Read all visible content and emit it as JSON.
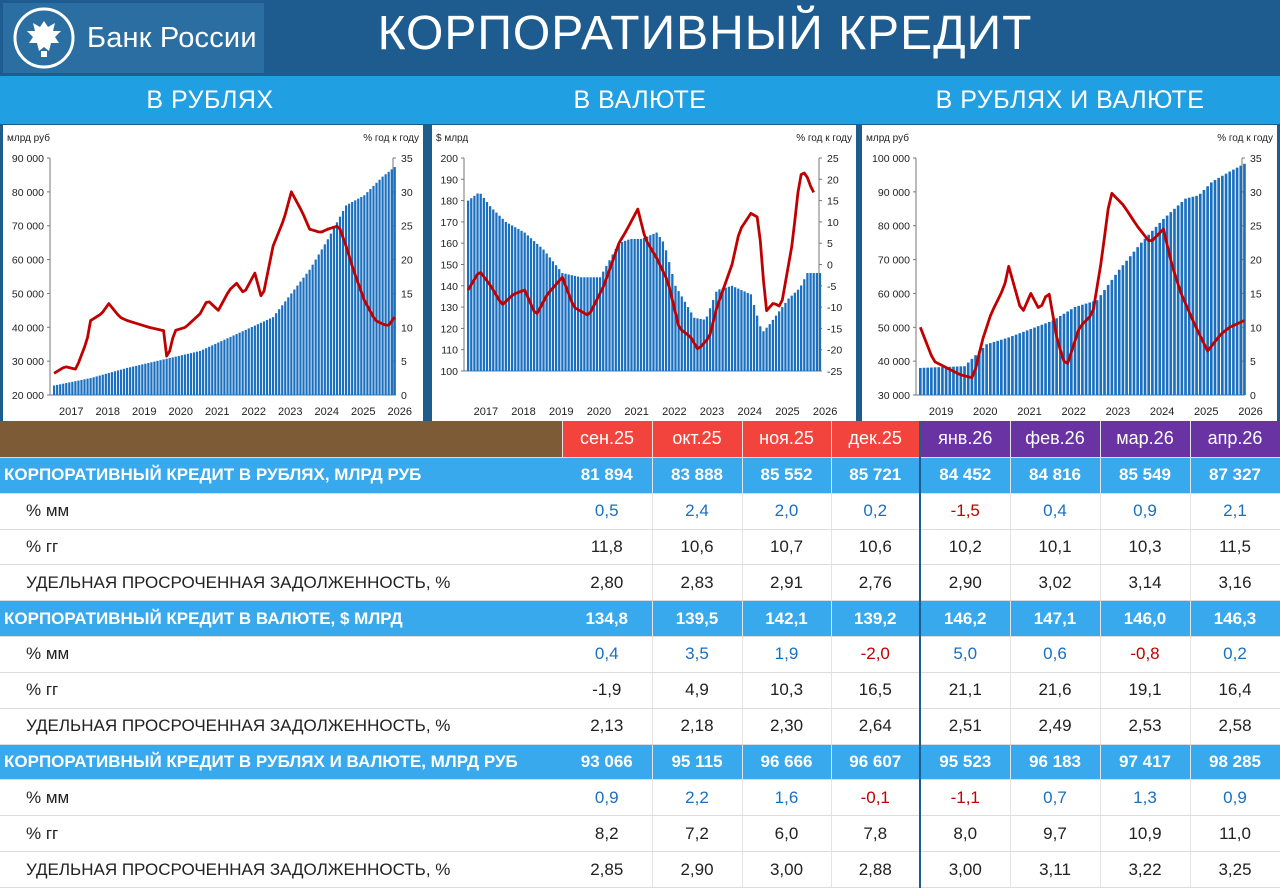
{
  "header": {
    "bank_name": "Банк России",
    "title": "КОРПОРАТИВНЫЙ КРЕДИТ"
  },
  "colors": {
    "bars": "#1a6fbf",
    "line": "#c00000",
    "header": "#1e5b8e",
    "section": "#20a0e2",
    "positive": "#1a6fbf",
    "negative": "#c00000"
  },
  "icons": [
    "double-headed-eagle-emblem-icon"
  ],
  "sections": [
    "В РУБЛЯХ",
    "В ВАЛЮТЕ",
    "В РУБЛЯХ И ВАЛЮТЕ"
  ],
  "chart_data": [
    {
      "type": "bar+line",
      "title": "В РУБЛЯХ",
      "ylabel_left": "млрд  руб",
      "ylabel_right": "% год к году",
      "ylim_left": [
        20000,
        90000
      ],
      "ylim_right": [
        0,
        35
      ],
      "yticks_left": [
        "90 000",
        "80 000",
        "70 000",
        "60 000",
        "50 000",
        "40 000",
        "30 000",
        "20 000"
      ],
      "yticks_right": [
        "35",
        "30",
        "25",
        "20",
        "15",
        "10",
        "5",
        "0"
      ],
      "x_labels": [
        "2017",
        "2018",
        "2019",
        "2020",
        "2021",
        "2022",
        "2023",
        "2024",
        "2025",
        "2026"
      ],
      "x_start": 2017.0,
      "grid": false,
      "series": [
        {
          "kind": "bar",
          "axis": "left",
          "knots": [
            [
              2017.0,
              22800
            ],
            [
              2018.0,
              25000
            ],
            [
              2019.0,
              28000
            ],
            [
              2020.0,
              30500
            ],
            [
              2021.0,
              33000
            ],
            [
              2022.0,
              38000
            ],
            [
              2023.0,
              43000
            ],
            [
              2023.5,
              50000
            ],
            [
              2024.0,
              57000
            ],
            [
              2024.5,
              66000
            ],
            [
              2025.0,
              76000
            ],
            [
              2025.5,
              79000
            ],
            [
              2026.0,
              84500
            ],
            [
              2026.33,
              87327
            ]
          ]
        },
        {
          "kind": "line",
          "axis": "right",
          "knots": [
            [
              2017.0,
              3.2
            ],
            [
              2017.3,
              4.2
            ],
            [
              2017.6,
              3.8
            ],
            [
              2017.9,
              8.0
            ],
            [
              2018.0,
              11.0
            ],
            [
              2018.3,
              12.0
            ],
            [
              2018.5,
              13.5
            ],
            [
              2018.8,
              11.5
            ],
            [
              2019.0,
              11.0
            ],
            [
              2019.3,
              10.5
            ],
            [
              2019.6,
              10.0
            ],
            [
              2020.0,
              9.5
            ],
            [
              2020.1,
              5.0
            ],
            [
              2020.3,
              9.5
            ],
            [
              2020.6,
              10.0
            ],
            [
              2021.0,
              12.0
            ],
            [
              2021.2,
              14.0
            ],
            [
              2021.5,
              12.5
            ],
            [
              2021.8,
              15.5
            ],
            [
              2022.0,
              16.5
            ],
            [
              2022.2,
              15.0
            ],
            [
              2022.5,
              18.0
            ],
            [
              2022.7,
              14.0
            ],
            [
              2023.0,
              22.0
            ],
            [
              2023.3,
              26.0
            ],
            [
              2023.5,
              30.0
            ],
            [
              2023.8,
              27.0
            ],
            [
              2024.0,
              24.5
            ],
            [
              2024.3,
              24.0
            ],
            [
              2024.5,
              24.5
            ],
            [
              2024.8,
              25.0
            ],
            [
              2025.0,
              22.0
            ],
            [
              2025.2,
              18.5
            ],
            [
              2025.5,
              14.0
            ],
            [
              2025.8,
              11.0
            ],
            [
              2026.0,
              10.5
            ],
            [
              2026.15,
              10.2
            ],
            [
              2026.33,
              11.5
            ]
          ]
        }
      ]
    },
    {
      "type": "bar+line",
      "title": "В ВАЛЮТЕ",
      "ylabel_left": "$ млрд",
      "ylabel_right": "% год к году",
      "ylim_left": [
        100,
        200
      ],
      "ylim_right": [
        -25,
        25
      ],
      "yticks_left": [
        "200",
        "190",
        "180",
        "170",
        "160",
        "150",
        "140",
        "130",
        "120",
        "110",
        "100"
      ],
      "yticks_right": [
        "25",
        "20",
        "15",
        "10",
        "5",
        "0",
        "-5",
        "-10",
        "-15",
        "-20",
        "-25"
      ],
      "x_labels": [
        "2017",
        "2018",
        "2019",
        "2020",
        "2021",
        "2022",
        "2023",
        "2024",
        "2025",
        "2026"
      ],
      "x_start": 2017.0,
      "grid": false,
      "series": [
        {
          "kind": "bar",
          "axis": "left",
          "knots": [
            [
              2017.0,
              180
            ],
            [
              2017.3,
              184
            ],
            [
              2017.6,
              177
            ],
            [
              2018.0,
              170
            ],
            [
              2018.5,
              165
            ],
            [
              2019.0,
              157
            ],
            [
              2019.5,
              146
            ],
            [
              2020.0,
              144
            ],
            [
              2020.5,
              144
            ],
            [
              2021.0,
              160
            ],
            [
              2021.3,
              162
            ],
            [
              2021.6,
              162
            ],
            [
              2022.0,
              165
            ],
            [
              2022.2,
              160
            ],
            [
              2022.5,
              140
            ],
            [
              2023.0,
              125
            ],
            [
              2023.3,
              124
            ],
            [
              2023.6,
              138
            ],
            [
              2024.0,
              140
            ],
            [
              2024.5,
              136
            ],
            [
              2024.8,
              118
            ],
            [
              2025.0,
              122
            ],
            [
              2025.5,
              134
            ],
            [
              2025.8,
              139
            ],
            [
              2026.0,
              146
            ],
            [
              2026.33,
              146
            ]
          ]
        },
        {
          "kind": "line",
          "axis": "right",
          "knots": [
            [
              2017.0,
              -6.0
            ],
            [
              2017.3,
              -1.5
            ],
            [
              2017.6,
              -5.0
            ],
            [
              2017.9,
              -9.5
            ],
            [
              2018.2,
              -7.0
            ],
            [
              2018.5,
              -6.0
            ],
            [
              2018.8,
              -12.0
            ],
            [
              2019.1,
              -7.0
            ],
            [
              2019.5,
              -3.0
            ],
            [
              2019.8,
              -10.0
            ],
            [
              2020.2,
              -12.0
            ],
            [
              2020.6,
              -5.0
            ],
            [
              2021.0,
              5.0
            ],
            [
              2021.2,
              8.0
            ],
            [
              2021.5,
              13.0
            ],
            [
              2021.7,
              6.0
            ],
            [
              2022.0,
              1.5
            ],
            [
              2022.3,
              -4.0
            ],
            [
              2022.6,
              -15.0
            ],
            [
              2022.9,
              -17.0
            ],
            [
              2023.1,
              -20.0
            ],
            [
              2023.4,
              -17.0
            ],
            [
              2023.6,
              -10.0
            ],
            [
              2024.0,
              0.0
            ],
            [
              2024.2,
              8.0
            ],
            [
              2024.5,
              12.0
            ],
            [
              2024.7,
              11.0
            ],
            [
              2024.9,
              -11.0
            ],
            [
              2025.1,
              -9.0
            ],
            [
              2025.3,
              -10.0
            ],
            [
              2025.6,
              5.0
            ],
            [
              2025.8,
              21.0
            ],
            [
              2025.95,
              21.6
            ],
            [
              2026.1,
              18.0
            ],
            [
              2026.2,
              16.4
            ]
          ]
        }
      ]
    },
    {
      "type": "bar+line",
      "title": "В РУБЛЯХ И ВАЛЮТЕ",
      "ylabel_left": "млрд  руб",
      "ylabel_right": "% год к году",
      "ylim_left": [
        30000,
        100000
      ],
      "ylim_right": [
        0,
        35
      ],
      "yticks_left": [
        "100 000",
        "90 000",
        "80 000",
        "70 000",
        "60 000",
        "50 000",
        "40 000",
        "30 000"
      ],
      "yticks_right": [
        "35",
        "30",
        "25",
        "20",
        "15",
        "10",
        "5",
        "0"
      ],
      "x_labels": [
        "2019",
        "2020",
        "2021",
        "2022",
        "2023",
        "2024",
        "2025",
        "2026"
      ],
      "x_start": 2019.0,
      "grid": false,
      "series": [
        {
          "kind": "bar",
          "axis": "left",
          "knots": [
            [
              2019.0,
              38000
            ],
            [
              2020.0,
              38500
            ],
            [
              2020.5,
              45000
            ],
            [
              2021.0,
              47000
            ],
            [
              2022.0,
              52000
            ],
            [
              2022.5,
              56000
            ],
            [
              2023.0,
              58000
            ],
            [
              2023.5,
              67000
            ],
            [
              2024.0,
              75000
            ],
            [
              2024.5,
              82000
            ],
            [
              2025.0,
              88000
            ],
            [
              2025.3,
              89000
            ],
            [
              2025.6,
              93000
            ],
            [
              2026.0,
              96000
            ],
            [
              2026.33,
              98285
            ]
          ]
        },
        {
          "kind": "line",
          "axis": "right",
          "knots": [
            [
              2019.0,
              10.0
            ],
            [
              2019.3,
              5.0
            ],
            [
              2019.6,
              4.0
            ],
            [
              2019.9,
              3.0
            ],
            [
              2020.2,
              2.5
            ],
            [
              2020.4,
              8.0
            ],
            [
              2020.6,
              12.0
            ],
            [
              2020.9,
              16.0
            ],
            [
              2021.0,
              19.0
            ],
            [
              2021.3,
              12.0
            ],
            [
              2021.5,
              15.0
            ],
            [
              2021.7,
              12.5
            ],
            [
              2021.9,
              15.5
            ],
            [
              2022.1,
              8.0
            ],
            [
              2022.3,
              4.0
            ],
            [
              2022.6,
              10.0
            ],
            [
              2022.9,
              12.0
            ],
            [
              2023.1,
              20.0
            ],
            [
              2023.3,
              30.0
            ],
            [
              2023.6,
              28.0
            ],
            [
              2023.9,
              25.0
            ],
            [
              2024.2,
              22.5
            ],
            [
              2024.5,
              24.5
            ],
            [
              2024.7,
              19.0
            ],
            [
              2024.9,
              15.0
            ],
            [
              2025.2,
              10.5
            ],
            [
              2025.5,
              6.5
            ],
            [
              2025.8,
              9.0
            ],
            [
              2026.0,
              10.0
            ],
            [
              2026.33,
              11.0
            ]
          ]
        }
      ]
    },
    {
      "type": "table",
      "corner": "",
      "columns": [
        "сен.25",
        "окт.25",
        "ноя.25",
        "дек.25",
        "янв.26",
        "фев.26",
        "мар.26",
        "апр.26"
      ],
      "rows": [
        {
          "label": "КОРПОРАТИВНЫЙ КРЕДИТ В РУБЛЯХ, МЛРД РУБ",
          "kind": "section",
          "values": [
            "81 894",
            "83 888",
            "85 552",
            "85 721",
            "84 452",
            "84 816",
            "85 549",
            "87 327"
          ]
        },
        {
          "label": "% мм",
          "kind": "signed",
          "values": [
            "0,5",
            "2,4",
            "2,0",
            "0,2",
            "-1,5",
            "0,4",
            "0,9",
            "2,1"
          ]
        },
        {
          "label": "% гг",
          "kind": "plain",
          "values": [
            "11,8",
            "10,6",
            "10,7",
            "10,6",
            "10,2",
            "10,1",
            "10,3",
            "11,5"
          ]
        },
        {
          "label": "УДЕЛЬНАЯ ПРОСРОЧЕННАЯ ЗАДОЛЖЕННОСТЬ, %",
          "kind": "plain",
          "values": [
            "2,80",
            "2,83",
            "2,91",
            "2,76",
            "2,90",
            "3,02",
            "3,14",
            "3,16"
          ]
        },
        {
          "label": "КОРПОРАТИВНЫЙ КРЕДИТ В ВАЛЮТЕ, $ МЛРД",
          "kind": "section",
          "values": [
            "134,8",
            "139,5",
            "142,1",
            "139,2",
            "146,2",
            "147,1",
            "146,0",
            "146,3"
          ]
        },
        {
          "label": "% мм",
          "kind": "signed",
          "values": [
            "0,4",
            "3,5",
            "1,9",
            "-2,0",
            "5,0",
            "0,6",
            "-0,8",
            "0,2"
          ]
        },
        {
          "label": "% гг",
          "kind": "plain",
          "values": [
            "-1,9",
            "4,9",
            "10,3",
            "16,5",
            "21,1",
            "21,6",
            "19,1",
            "16,4"
          ]
        },
        {
          "label": "УДЕЛЬНАЯ ПРОСРОЧЕННАЯ ЗАДОЛЖЕННОСТЬ, %",
          "kind": "plain",
          "values": [
            "2,13",
            "2,18",
            "2,30",
            "2,64",
            "2,51",
            "2,49",
            "2,53",
            "2,58"
          ]
        },
        {
          "label": "КОРПОРАТИВНЫЙ КРЕДИТ В РУБЛЯХ И ВАЛЮТЕ, МЛРД РУБ",
          "kind": "section",
          "values": [
            "93 066",
            "95 115",
            "96 666",
            "96 607",
            "95 523",
            "96 183",
            "97 417",
            "98 285"
          ]
        },
        {
          "label": "% мм",
          "kind": "signed",
          "values": [
            "0,9",
            "2,2",
            "1,6",
            "-0,1",
            "-1,1",
            "0,7",
            "1,3",
            "0,9"
          ]
        },
        {
          "label": "% гг",
          "kind": "plain",
          "values": [
            "8,2",
            "7,2",
            "6,0",
            "7,8",
            "8,0",
            "9,7",
            "10,9",
            "11,0"
          ]
        },
        {
          "label": "УДЕЛЬНАЯ ПРОСРОЧЕННАЯ ЗАДОЛЖЕННОСТЬ, %",
          "kind": "plain",
          "values": [
            "2,85",
            "2,90",
            "3,00",
            "2,88",
            "3,00",
            "3,11",
            "3,22",
            "3,25"
          ]
        }
      ]
    }
  ]
}
